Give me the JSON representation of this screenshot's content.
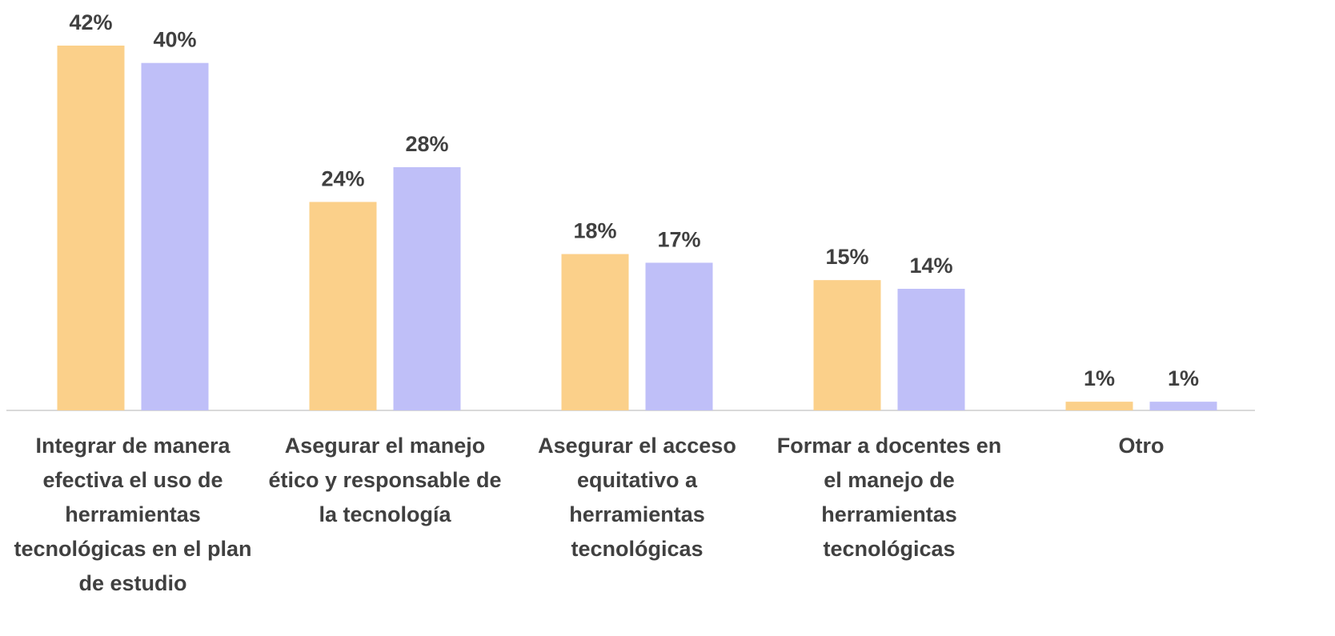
{
  "chart_data": {
    "type": "bar",
    "categories": [
      "Integrar de manera efectiva el uso de herramientas tecnológicas en el plan de estudio",
      "Asegurar el manejo ético y responsable de la tecnología",
      "Asegurar el acceso equitativo a herramientas tecnológicas",
      "Formar a docentes en el manejo de herramientas tecnológicas",
      "Otro"
    ],
    "series": [
      {
        "color": "#fbd08a",
        "values": [
          42,
          24,
          18,
          15,
          1
        ],
        "value_labels": [
          "42%",
          "24%",
          "18%",
          "15%",
          "1%"
        ]
      },
      {
        "color": "#bfbff8",
        "values": [
          40,
          28,
          17,
          14,
          1
        ],
        "value_labels": [
          "40%",
          "28%",
          "17%",
          "14%",
          "1%"
        ]
      }
    ]
  }
}
